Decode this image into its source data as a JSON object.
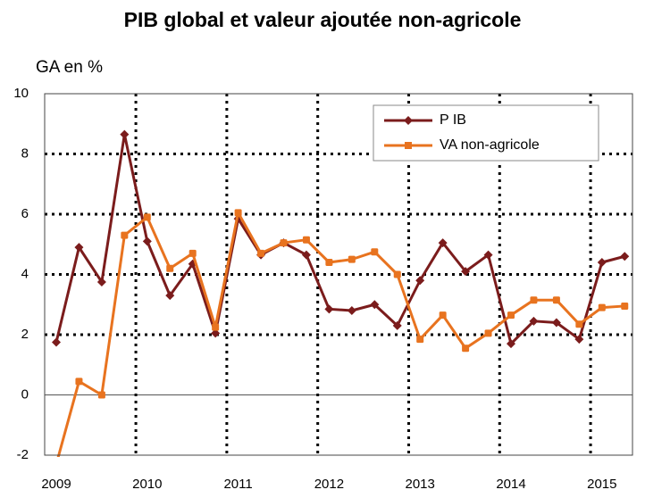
{
  "chart_data": {
    "type": "line",
    "title": "PIB global et valeur ajoutée non-agricole",
    "y_label": "GA en %",
    "categories": [
      "2009",
      null,
      null,
      null,
      "2010",
      null,
      null,
      null,
      "2011",
      null,
      null,
      null,
      "2012",
      null,
      null,
      null,
      "2013",
      null,
      null,
      null,
      "2014",
      null,
      null,
      null,
      "2015",
      null
    ],
    "series": [
      {
        "name": "P IB",
        "color": "#7b1c1c",
        "marker": "diamond",
        "values": [
          1.75,
          4.9,
          3.75,
          8.65,
          5.1,
          3.3,
          4.35,
          2.05,
          5.85,
          4.65,
          5.05,
          4.65,
          2.85,
          2.8,
          3.0,
          2.3,
          3.8,
          5.05,
          4.1,
          4.65,
          1.7,
          2.45,
          2.4,
          1.85,
          4.4,
          4.6
        ]
      },
      {
        "name": "VA non-agricole",
        "color": "#e8731f",
        "marker": "square",
        "values": [
          -2.3,
          0.45,
          0.0,
          5.3,
          5.9,
          4.2,
          4.7,
          2.25,
          6.05,
          4.7,
          5.05,
          5.15,
          4.4,
          4.5,
          4.75,
          4.0,
          1.85,
          2.65,
          1.55,
          2.05,
          2.65,
          3.15,
          3.15,
          2.35,
          2.9,
          2.95
        ]
      }
    ],
    "ylim": [
      -2,
      10
    ],
    "yticks": [
      -2,
      0,
      2,
      4,
      6,
      8,
      10
    ],
    "grid": true,
    "legend": "top-right"
  }
}
